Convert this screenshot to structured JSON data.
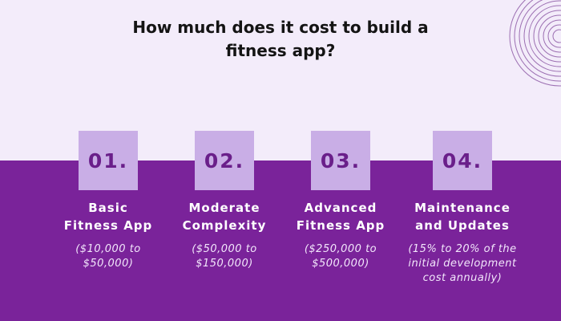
{
  "title": {
    "line1": "How much does it cost to build a",
    "line2": "fitness app?"
  },
  "colors": {
    "background_top": "#f3ecfa",
    "background_bottom": "#7a239a",
    "badge": "#c9aee6",
    "badge_text": "#6a1f8a",
    "circle_stroke": "#9c6fb2"
  },
  "tiers": [
    {
      "number": "01.",
      "heading": [
        "Basic",
        "Fitness App"
      ],
      "cost": [
        "($10,000 to",
        "$50,000)"
      ]
    },
    {
      "number": "02.",
      "heading": [
        "Moderate",
        "Complexity"
      ],
      "cost": [
        "($50,000 to",
        "$150,000)"
      ]
    },
    {
      "number": "03.",
      "heading": [
        "Advanced",
        "Fitness App"
      ],
      "cost": [
        "($250,000 to",
        "$500,000)"
      ]
    },
    {
      "number": "04.",
      "heading": [
        "Maintenance",
        "and Updates"
      ],
      "cost": [
        "(15% to 20% of the",
        "initial development",
        "cost annually)"
      ]
    }
  ]
}
